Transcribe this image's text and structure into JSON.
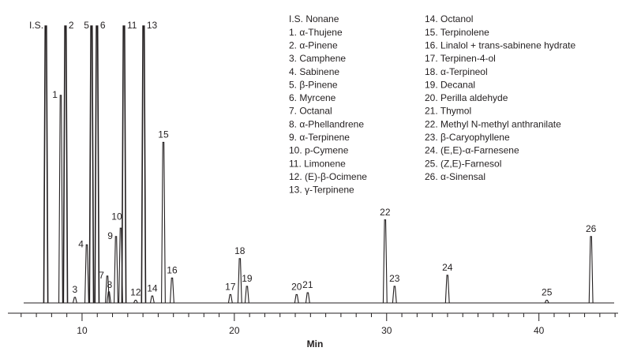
{
  "chart_data": {
    "type": "chromatogram",
    "x_label": "Min",
    "xlim": [
      5.13,
      45.2
    ],
    "xticks": [
      10,
      20,
      30,
      40
    ],
    "xminorticks": [
      6,
      7,
      8,
      9,
      11,
      12,
      13,
      14,
      15,
      16,
      17,
      18,
      19,
      21,
      22,
      23,
      24,
      25,
      26,
      27,
      28,
      29,
      31,
      32,
      33,
      34,
      35,
      36,
      37,
      38,
      39,
      41,
      42,
      43,
      44,
      45
    ],
    "ylim": [
      0,
      100
    ],
    "color": "#231f20",
    "peak_labels": [
      "I.S.",
      "1",
      "2",
      "3",
      "4",
      "5",
      "6",
      "7",
      "8",
      "9",
      "10",
      "11",
      "12",
      "13",
      "14",
      "15",
      "16",
      "17",
      "18",
      "19",
      "20",
      "21",
      "22",
      "23",
      "24",
      "25",
      "26"
    ],
    "x": [
      7.62,
      8.6,
      8.91,
      9.53,
      10.31,
      10.62,
      10.98,
      11.66,
      11.76,
      12.23,
      12.54,
      12.75,
      13.52,
      14.04,
      14.61,
      15.34,
      15.91,
      19.74,
      20.36,
      20.83,
      24.09,
      24.82,
      29.9,
      30.52,
      33.99,
      40.52,
      43.42
    ],
    "values": [
      100,
      75,
      100,
      2,
      21,
      100,
      100,
      9.7,
      4,
      24,
      27,
      100,
      1,
      100,
      2.5,
      58,
      9,
      3,
      16,
      6,
      3,
      3.7,
      30,
      6,
      10,
      1,
      24
    ],
    "legend_columns": [
      [
        "I.S. Nonane",
        "1. α-Thujene",
        "2. α-Pinene",
        "3. Camphene",
        "4. Sabinene",
        "5. β-Pinene",
        "6. Myrcene",
        "7. Octanal",
        "8. α-Phellandrene",
        "9. α-Terpinene",
        "10. p-Cymene",
        "11. Limonene",
        "12. (E)-β-Ocimene",
        "13. γ-Terpinene"
      ],
      [
        "14. Octanol",
        "15. Terpinolene",
        "16. Linalol + trans-sabinene hydrate",
        "17. Terpinen-4-ol",
        "18. α-Terpineol",
        "19. Decanal",
        "20. Perilla aldehyde",
        "21. Thymol",
        "22. Methyl N-methyl anthranilate",
        "23. β-Caryophyllene",
        "24. (E,E)-α-Farnesene",
        "25. (Z,E)-Farnesol",
        "26. α-Sinensal"
      ]
    ]
  }
}
